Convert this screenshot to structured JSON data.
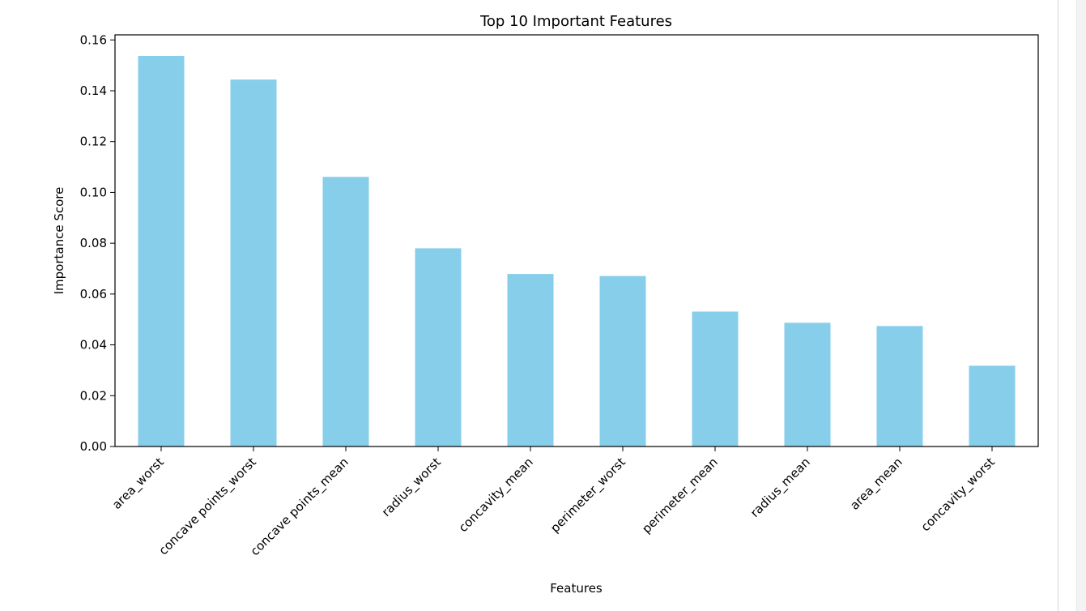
{
  "colors": {
    "bar": "#87ceeb",
    "axis": "#000000",
    "background": "#ffffff"
  },
  "chart_data": {
    "type": "bar",
    "title": "Top 10 Important Features",
    "xlabel": "Features",
    "ylabel": "Importance Score",
    "categories": [
      "area_worst",
      "concave points_worst",
      "concave points_mean",
      "radius_worst",
      "concavity_mean",
      "perimeter_worst",
      "perimeter_mean",
      "radius_mean",
      "area_mean",
      "concavity_worst"
    ],
    "values": [
      0.1537,
      0.1444,
      0.1061,
      0.078,
      0.0679,
      0.0671,
      0.0531,
      0.0487,
      0.0474,
      0.0318
    ],
    "ylim": [
      0,
      0.162
    ],
    "yticks": [
      0.0,
      0.02,
      0.04,
      0.06,
      0.08,
      0.1,
      0.12,
      0.14,
      0.16
    ],
    "ytick_labels": [
      "0.00",
      "0.02",
      "0.04",
      "0.06",
      "0.08",
      "0.10",
      "0.12",
      "0.14",
      "0.16"
    ],
    "grid": false,
    "legend": "none"
  }
}
